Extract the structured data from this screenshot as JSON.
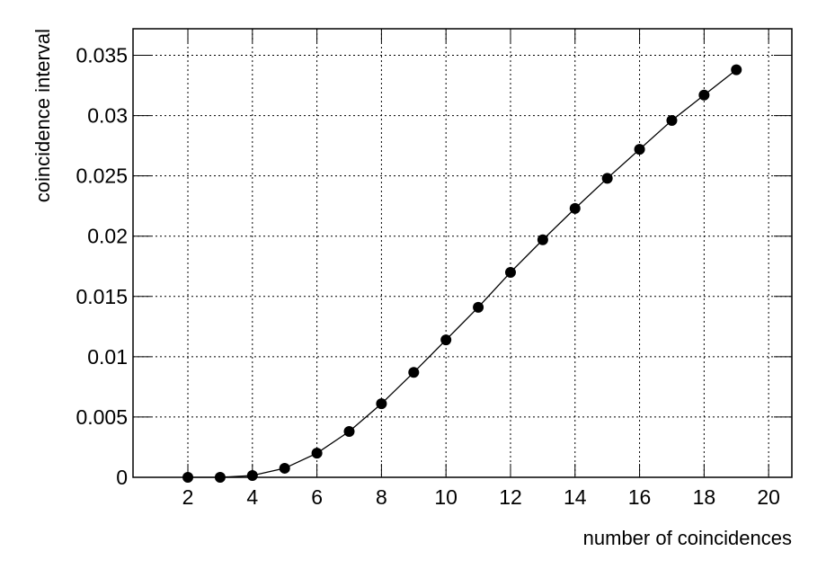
{
  "chart_data": {
    "type": "line",
    "x_label": "number of coincidences",
    "y_label": "coincidence interval",
    "x": [
      2,
      3,
      4,
      5,
      6,
      7,
      8,
      9,
      10,
      11,
      12,
      13,
      14,
      15,
      16,
      17,
      18,
      19
    ],
    "series": [
      {
        "color": "#000000",
        "values": [
          0,
          0,
          0.00015,
          0.00075,
          0.002,
          0.0038,
          0.0061,
          0.0087,
          0.0114,
          0.0141,
          0.017,
          0.0197,
          0.0223,
          0.0248,
          0.0272,
          0.0296,
          0.0317,
          0.0338
        ]
      }
    ],
    "xlim": [
      0.3,
      20.72
    ],
    "ylim": [
      0,
      0.0372
    ],
    "xticks": [
      2,
      4,
      6,
      8,
      10,
      12,
      14,
      16,
      18,
      20
    ],
    "yticks": [
      0,
      0.005,
      0.01,
      0.015,
      0.02,
      0.025,
      0.03,
      0.035
    ],
    "grid": true
  }
}
